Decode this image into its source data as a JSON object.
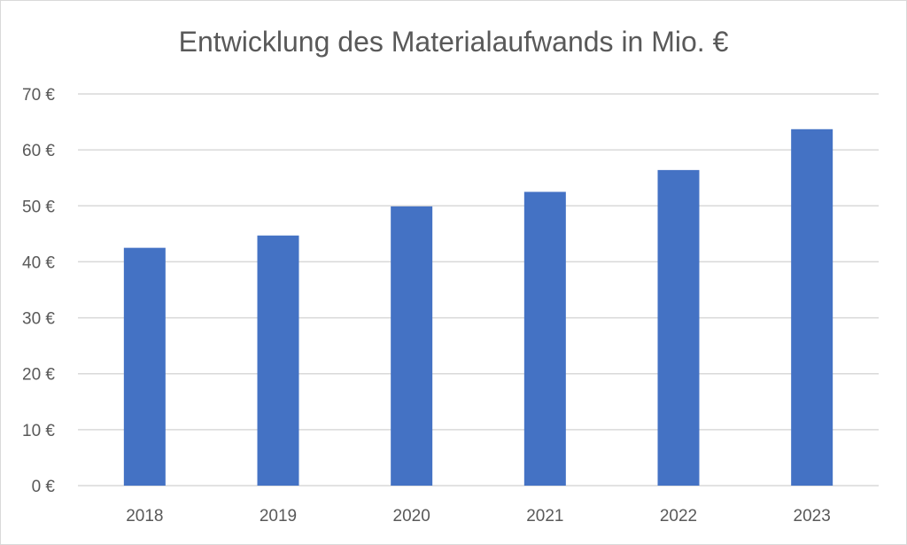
{
  "chart_data": {
    "type": "bar",
    "title": "Entwicklung des Materialaufwands in Mio. €",
    "xlabel": "",
    "ylabel": "",
    "categories": [
      "2018",
      "2019",
      "2020",
      "2021",
      "2022",
      "2023"
    ],
    "values": [
      42.5,
      44.7,
      49.9,
      52.5,
      56.4,
      63.7
    ],
    "ylim": [
      0,
      70
    ],
    "yticks": [
      0,
      10,
      20,
      30,
      40,
      50,
      60,
      70
    ],
    "ytick_labels": [
      "0 €",
      "10 €",
      "20 €",
      "30 €",
      "40 €",
      "50 €",
      "60 €",
      "70 €"
    ],
    "grid": true,
    "legend": "none",
    "bar_color": "#4472c4"
  }
}
